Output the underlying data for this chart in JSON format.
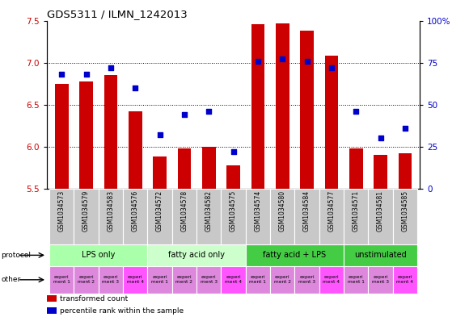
{
  "title": "GDS5311 / ILMN_1242013",
  "samples": [
    "GSM1034573",
    "GSM1034579",
    "GSM1034583",
    "GSM1034576",
    "GSM1034572",
    "GSM1034578",
    "GSM1034582",
    "GSM1034575",
    "GSM1034574",
    "GSM1034580",
    "GSM1034584",
    "GSM1034577",
    "GSM1034571",
    "GSM1034581",
    "GSM1034585"
  ],
  "transformed_count": [
    6.75,
    6.78,
    6.85,
    6.42,
    5.88,
    5.98,
    6.0,
    5.78,
    7.46,
    7.47,
    7.38,
    7.08,
    5.98,
    5.9,
    5.92
  ],
  "percentile_rank": [
    68,
    68,
    72,
    60,
    32,
    44,
    46,
    22,
    76,
    77,
    76,
    72,
    46,
    30,
    36
  ],
  "ylim_left": [
    5.5,
    7.5
  ],
  "ylim_right": [
    0,
    100
  ],
  "yticks_left": [
    5.5,
    6.0,
    6.5,
    7.0,
    7.5
  ],
  "yticks_right": [
    0,
    25,
    50,
    75,
    100
  ],
  "ytick_labels_right": [
    "0",
    "25",
    "50",
    "75",
    "100%"
  ],
  "bar_color": "#cc0000",
  "dot_color": "#0000cc",
  "bg_color": "#ffffff",
  "sample_bg": "#c8c8c8",
  "proto_groups": [
    {
      "label": "LPS only",
      "indices": [
        0,
        1,
        2,
        3
      ],
      "color": "#aaffaa"
    },
    {
      "label": "fatty acid only",
      "indices": [
        4,
        5,
        6,
        7
      ],
      "color": "#ccffcc"
    },
    {
      "label": "fatty acid + LPS",
      "indices": [
        8,
        9,
        10,
        11
      ],
      "color": "#44cc44"
    },
    {
      "label": "unstimulated",
      "indices": [
        12,
        13,
        14
      ],
      "color": "#44cc44"
    }
  ],
  "other_labels": [
    "experi\nment 1",
    "experi\nment 2",
    "experi\nment 3",
    "experi\nment 4",
    "experi\nment 1",
    "experi\nment 2",
    "experi\nment 3",
    "experi\nment 4",
    "experi\nment 1",
    "experi\nment 2",
    "experi\nment 3",
    "experi\nment 4",
    "experi\nment 1",
    "experi\nment 3",
    "experi\nment 4"
  ],
  "other_colors": [
    "#dd88dd",
    "#dd88dd",
    "#dd88dd",
    "#ff55ff",
    "#dd88dd",
    "#dd88dd",
    "#dd88dd",
    "#ff55ff",
    "#dd88dd",
    "#dd88dd",
    "#dd88dd",
    "#ff55ff",
    "#dd88dd",
    "#dd88dd",
    "#ff55ff"
  ],
  "legend_items": [
    {
      "color": "#cc0000",
      "label": "transformed count"
    },
    {
      "color": "#0000cc",
      "label": "percentile rank within the sample"
    }
  ],
  "grid_yticks": [
    6.0,
    6.5,
    7.0
  ]
}
